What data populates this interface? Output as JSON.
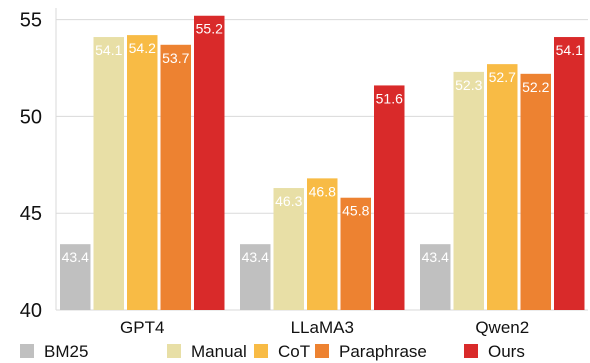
{
  "chart_data": {
    "type": "bar",
    "categories": [
      "GPT4",
      "LLaMA3",
      "Qwen2"
    ],
    "series": [
      {
        "name": "BM25",
        "color": "#c0c0c0",
        "values": [
          43.4,
          43.4,
          43.4
        ]
      },
      {
        "name": "Manual",
        "color": "#e8dfa6",
        "values": [
          54.1,
          46.3,
          52.3
        ]
      },
      {
        "name": "CoT",
        "color": "#f8bb45",
        "values": [
          54.2,
          46.8,
          52.7
        ]
      },
      {
        "name": "Paraphrase",
        "color": "#ed8231",
        "values": [
          53.7,
          45.8,
          52.2
        ]
      },
      {
        "name": "Ours",
        "color": "#d92a2a",
        "values": [
          55.2,
          51.6,
          54.1
        ]
      }
    ],
    "yticks": [
      40,
      45,
      50,
      55
    ],
    "ylim": [
      40,
      55.6
    ],
    "grid": true,
    "legend_position": "bottom",
    "title": "",
    "xlabel": "",
    "ylabel": ""
  }
}
